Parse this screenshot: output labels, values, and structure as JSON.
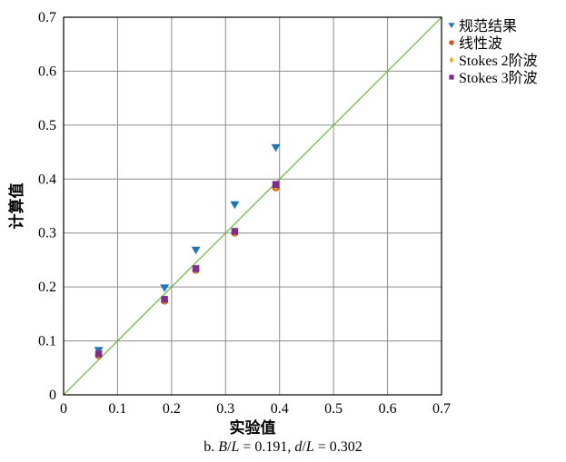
{
  "chart_data": {
    "type": "scatter",
    "xlabel": "实验值",
    "ylabel": "计算值",
    "xlim": [
      0,
      0.7
    ],
    "ylim": [
      0,
      0.7
    ],
    "x_ticks": [
      "0",
      "0.1",
      "0.2",
      "0.3",
      "0.4",
      "0.5",
      "0.6",
      "0.7"
    ],
    "y_ticks": [
      "0",
      "0.1",
      "0.2",
      "0.3",
      "0.4",
      "0.5",
      "0.6",
      "0.7"
    ],
    "grid": true,
    "legend_position": "top-right outside",
    "reference_line": {
      "from": [
        0,
        0
      ],
      "to": [
        0.7,
        0.7
      ],
      "color": "#6ab43e"
    },
    "series": [
      {
        "name": "规范结果",
        "marker": "triangle-down",
        "color": "#1f77b4",
        "x": [
          0.065,
          0.187,
          0.245,
          0.317,
          0.393
        ],
        "y": [
          0.082,
          0.198,
          0.268,
          0.352,
          0.458
        ]
      },
      {
        "name": "线性波",
        "marker": "circle",
        "color": "#d9541e",
        "x": [
          0.065,
          0.187,
          0.245,
          0.317,
          0.393
        ],
        "y": [
          0.073,
          0.174,
          0.231,
          0.3,
          0.384
        ]
      },
      {
        "name": "Stokes 2阶波",
        "marker": "diamond",
        "color": "#edb120",
        "x": [
          0.065,
          0.187,
          0.245,
          0.317,
          0.393
        ],
        "y": [
          0.075,
          0.176,
          0.233,
          0.302,
          0.387
        ]
      },
      {
        "name": "Stokes 3阶波",
        "marker": "square",
        "color": "#7e2f8e",
        "x": [
          0.065,
          0.187,
          0.245,
          0.317,
          0.393
        ],
        "y": [
          0.076,
          0.177,
          0.234,
          0.303,
          0.39
        ]
      }
    ]
  },
  "caption": {
    "prefix": "b. ",
    "var1": "B",
    "sep1": "/",
    "var2": "L",
    "mid1": " = 0.191, ",
    "var3": "d",
    "sep2": "/",
    "var4": "L",
    "mid2": " = 0.302"
  }
}
